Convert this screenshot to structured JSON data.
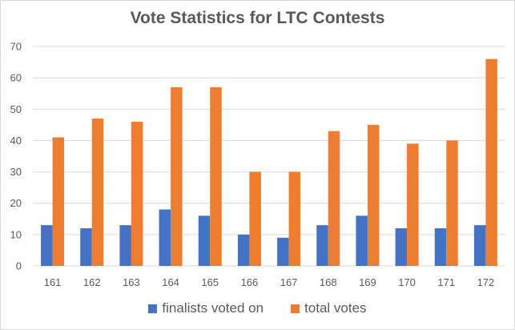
{
  "chart_data": {
    "type": "bar",
    "title": "Vote Statistics for LTC Contests",
    "xlabel": "",
    "ylabel": "",
    "categories": [
      "161",
      "162",
      "163",
      "164",
      "165",
      "166",
      "167",
      "168",
      "169",
      "170",
      "171",
      "172"
    ],
    "series": [
      {
        "name": "finalists voted on",
        "color": "#4472C4",
        "values": [
          13,
          12,
          13,
          18,
          16,
          10,
          9,
          13,
          16,
          12,
          12,
          13
        ]
      },
      {
        "name": "total votes",
        "color": "#ED7D31",
        "values": [
          41,
          47,
          46,
          57,
          57,
          30,
          30,
          43,
          45,
          39,
          40,
          66
        ]
      }
    ],
    "ylim": [
      0,
      70
    ],
    "yticks": [
      0,
      10,
      20,
      30,
      40,
      50,
      60,
      70
    ],
    "grid": true,
    "legend_position": "bottom"
  }
}
